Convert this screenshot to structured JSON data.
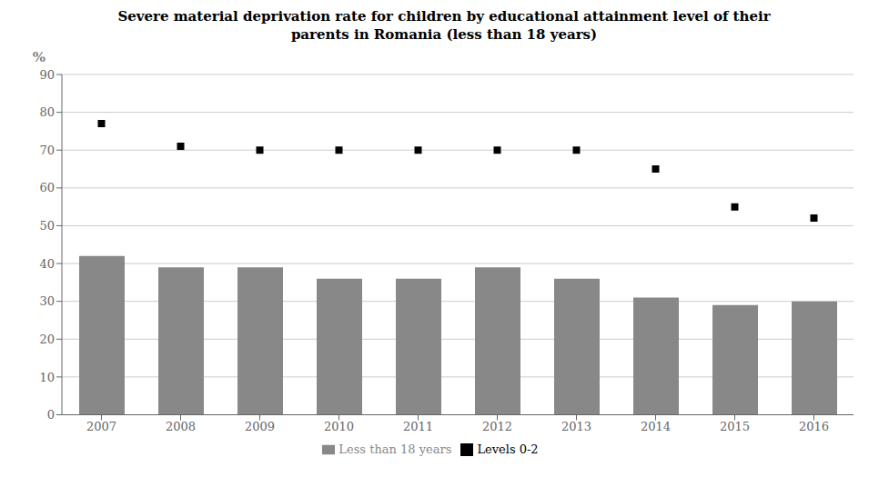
{
  "chart_data": {
    "type": "bar",
    "title": "Severe material deprivation rate for children by educational attainment level of their\nparents in Romania (less than 18 years)",
    "y_label": "%",
    "categories": [
      "2007",
      "2008",
      "2009",
      "2010",
      "2011",
      "2012",
      "2013",
      "2014",
      "2015",
      "2016"
    ],
    "series": [
      {
        "name": "Less than 18 years",
        "type": "bar",
        "color": "#888888",
        "values": [
          42,
          39,
          39,
          36,
          36,
          39,
          36,
          31,
          29,
          30
        ]
      },
      {
        "name": "Levels 0-2",
        "type": "scatter",
        "color": "#000000",
        "marker": "square",
        "values": [
          77,
          71,
          70,
          70,
          70,
          70,
          70,
          65,
          55,
          52
        ]
      }
    ],
    "ylim": [
      0,
      90
    ],
    "yticks": [
      0,
      10,
      20,
      30,
      40,
      50,
      60,
      70,
      80,
      90
    ],
    "grid": true,
    "legend": "bottom"
  }
}
